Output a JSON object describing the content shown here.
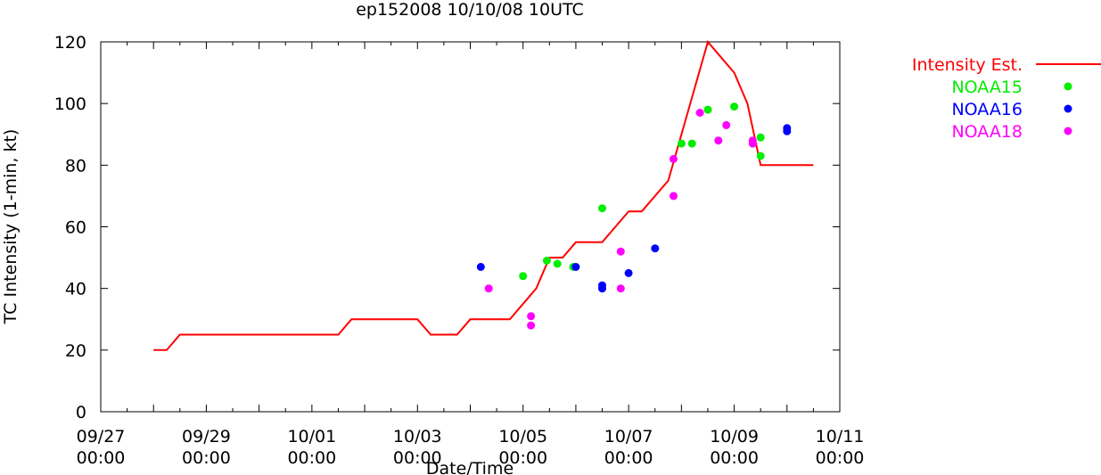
{
  "chart_data": {
    "type": "line",
    "title": "ep152008 10/10/08 10UTC",
    "xlabel": "Date/Time",
    "ylabel": "TC Intensity (1-min, kt)",
    "ylim": [
      0,
      120
    ],
    "yticks": [
      0,
      20,
      40,
      60,
      80,
      100,
      120
    ],
    "xlim": [
      0,
      14
    ],
    "xticks": [
      {
        "value": 0,
        "line1": "09/27",
        "line2": "00:00"
      },
      {
        "value": 2,
        "line1": "09/29",
        "line2": "00:00"
      },
      {
        "value": 4,
        "line1": "10/01",
        "line2": "00:00"
      },
      {
        "value": 6,
        "line1": "10/03",
        "line2": "00:00"
      },
      {
        "value": 8,
        "line1": "10/05",
        "line2": "00:00"
      },
      {
        "value": 10,
        "line1": "10/07",
        "line2": "00:00"
      },
      {
        "value": 12,
        "line1": "10/09",
        "line2": "00:00"
      },
      {
        "value": 14,
        "line1": "10/11",
        "line2": "00:00"
      }
    ],
    "grid": false,
    "legend_position": "outside-right",
    "series": [
      {
        "name": "Intensity Est.",
        "kind": "line",
        "color": "#ff0000",
        "x": [
          1.0,
          1.25,
          1.5,
          4.5,
          4.75,
          6.0,
          6.25,
          6.75,
          7.0,
          7.75,
          8.25,
          8.5,
          8.75,
          9.0,
          9.5,
          9.75,
          10.0,
          10.25,
          10.75,
          11.0,
          11.5,
          11.75,
          12.0,
          12.25,
          12.5,
          12.75,
          13.0,
          13.5
        ],
        "y": [
          20,
          20,
          25,
          25,
          30,
          30,
          25,
          25,
          30,
          30,
          40,
          50,
          50,
          55,
          55,
          60,
          65,
          65,
          75,
          90,
          120,
          115,
          110,
          100,
          80,
          80,
          80,
          80
        ]
      },
      {
        "name": "NOAA15",
        "kind": "scatter",
        "color": "#00ee00",
        "x": [
          8.0,
          8.45,
          8.65,
          8.95,
          9.5,
          11.0,
          11.2,
          11.5,
          12.0,
          12.5,
          12.5
        ],
        "y": [
          44,
          49,
          48,
          47,
          66,
          87,
          87,
          98,
          99,
          89,
          83
        ]
      },
      {
        "name": "NOAA16",
        "kind": "scatter",
        "color": "#0000ff",
        "x": [
          7.2,
          9.0,
          9.5,
          9.5,
          10.0,
          10.5,
          13.0,
          13.0
        ],
        "y": [
          47,
          47,
          41,
          40,
          45,
          53,
          92,
          91
        ]
      },
      {
        "name": "NOAA18",
        "kind": "scatter",
        "color": "#ff00ff",
        "x": [
          7.35,
          8.15,
          8.15,
          9.85,
          9.85,
          10.85,
          10.85,
          11.35,
          11.7,
          11.85,
          12.35,
          12.35
        ],
        "y": [
          40,
          31,
          28,
          52,
          40,
          82,
          70,
          97,
          88,
          93,
          88,
          87
        ]
      }
    ]
  }
}
